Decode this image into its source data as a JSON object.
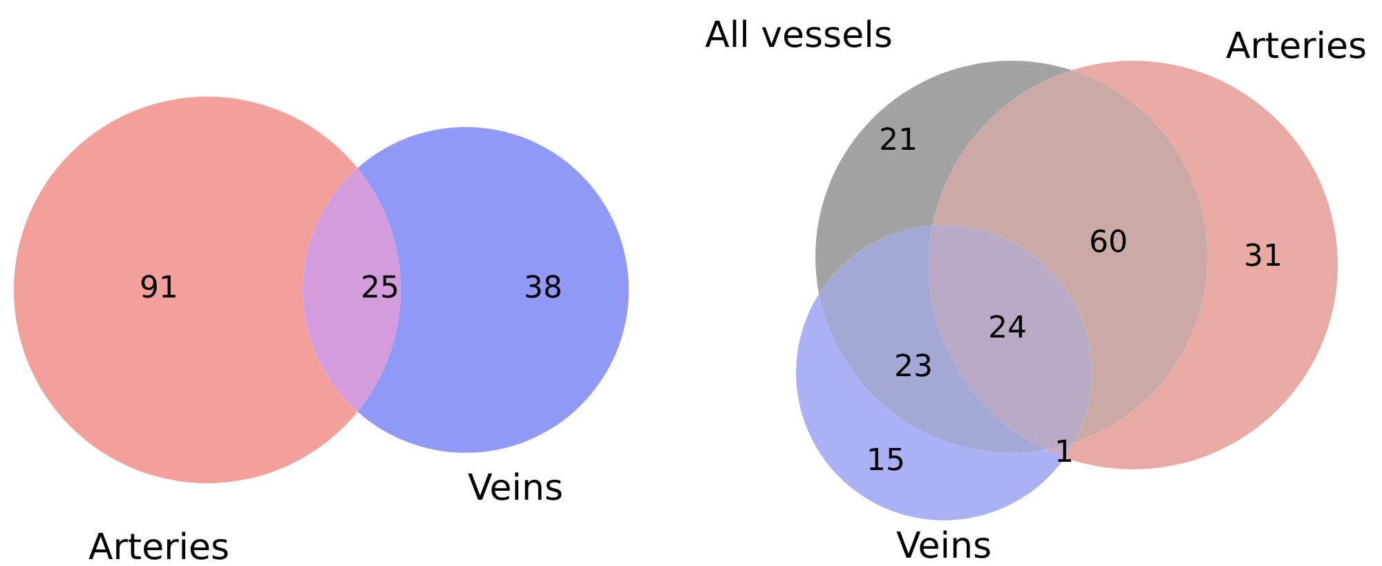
{
  "chart_data": [
    {
      "type": "other",
      "categories": [
        null,
        null,
        null
      ],
      "values": [
        91,
        25,
        38
      ],
      "data_labels": true,
      "colors": [
        "#f4a09a",
        "#d39cdc",
        "#9199f7"
      ],
      "annotations": [
        "Arteries",
        "Veins"
      ]
    },
    {
      "type": "other",
      "categories": [
        null,
        null,
        null,
        null,
        null,
        null,
        null
      ],
      "values": [
        21,
        60,
        31,
        24,
        23,
        15,
        1
      ],
      "data_labels": true,
      "colors": [
        "#a3a3a3",
        "#cbaaa6",
        "#e8aaa2",
        "#b8aac4",
        "#a4a8d4",
        "#aab1f4",
        "#c6acc8"
      ],
      "annotations": [
        "All vessels",
        "Arteries",
        "Veins"
      ]
    }
  ]
}
